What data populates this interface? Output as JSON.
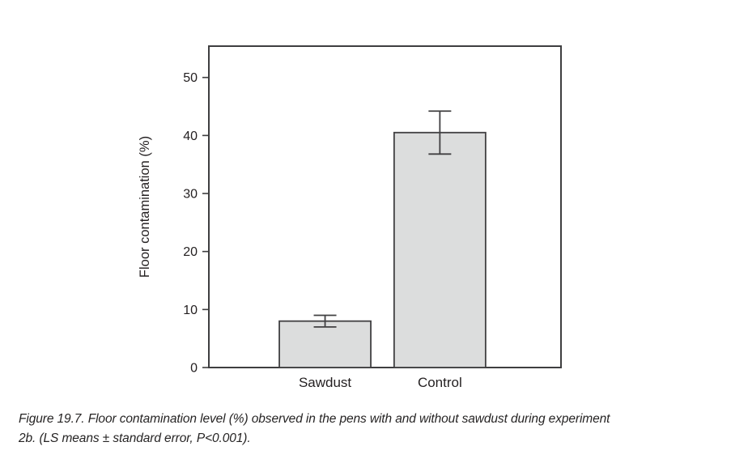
{
  "figure": {
    "caption_line1": "Figure 19.7. Floor contamination level (%) observed in the pens with and without sawdust during experiment",
    "caption_line2": "2b. (LS means ± standard error, P<0.001)."
  },
  "chart_data": {
    "type": "bar",
    "title": "",
    "categories": [
      "Sawdust",
      "Control"
    ],
    "values": [
      8,
      40.5
    ],
    "errors": [
      1,
      3.7
    ],
    "xlabel": "",
    "ylabel": "Floor contamination (%)",
    "yticks": [
      0,
      10,
      20,
      30,
      40,
      50
    ],
    "ylim": [
      0,
      55.4
    ],
    "grid": false,
    "legend": false,
    "bar_fill": "#dcdddd",
    "bar_stroke": "#414042",
    "axis_color": "#3e3e40",
    "text_color": "#231f20"
  }
}
